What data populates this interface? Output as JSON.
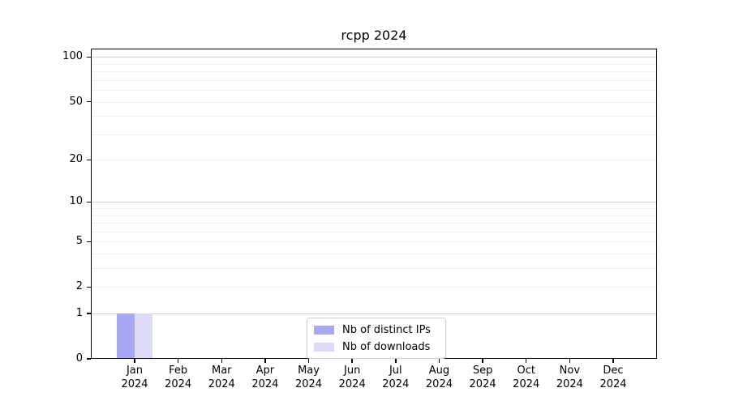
{
  "chart_data": {
    "type": "bar",
    "title": "rcpp 2024",
    "categories": [
      "Jan",
      "Feb",
      "Mar",
      "Apr",
      "May",
      "Jun",
      "Jul",
      "Aug",
      "Sep",
      "Oct",
      "Nov",
      "Dec"
    ],
    "category_year": "2024",
    "series": [
      {
        "name": "Nb of distinct IPs",
        "color": "#a8a8f2",
        "values": [
          1,
          0,
          0,
          0,
          0,
          0,
          0,
          0,
          0,
          0,
          0,
          0
        ]
      },
      {
        "name": "Nb of downloads",
        "color": "#dbdbf8",
        "values": [
          1,
          0,
          0,
          0,
          0,
          0,
          0,
          0,
          0,
          0,
          0,
          0
        ]
      }
    ],
    "y_axis": {
      "scale": "log1p",
      "tick_values": [
        0,
        1,
        2,
        5,
        10,
        20,
        50,
        100
      ],
      "major_gridlines": [
        1,
        10,
        100
      ],
      "minor_gridlines": [
        2,
        3,
        4,
        5,
        6,
        7,
        8,
        9,
        20,
        30,
        40,
        50,
        60,
        70,
        80,
        90
      ],
      "range": [
        0,
        114
      ],
      "grid": "on"
    },
    "x_axis": {
      "tick_label_line1": [
        "Jan",
        "Feb",
        "Mar",
        "Apr",
        "May",
        "Jun",
        "Jul",
        "Aug",
        "Sep",
        "Oct",
        "Nov",
        "Dec"
      ],
      "tick_label_line2": "2024"
    },
    "legend": {
      "position": "lower-center",
      "entries": [
        "Nb of distinct IPs",
        "Nb of downloads"
      ]
    },
    "colors": {
      "distinct_ips_bar": "#a8a8f2",
      "downloads_bar": "#dbdbf8",
      "major_grid": "#cccccc",
      "minor_grid": "#efefef",
      "axis": "#000000"
    }
  }
}
